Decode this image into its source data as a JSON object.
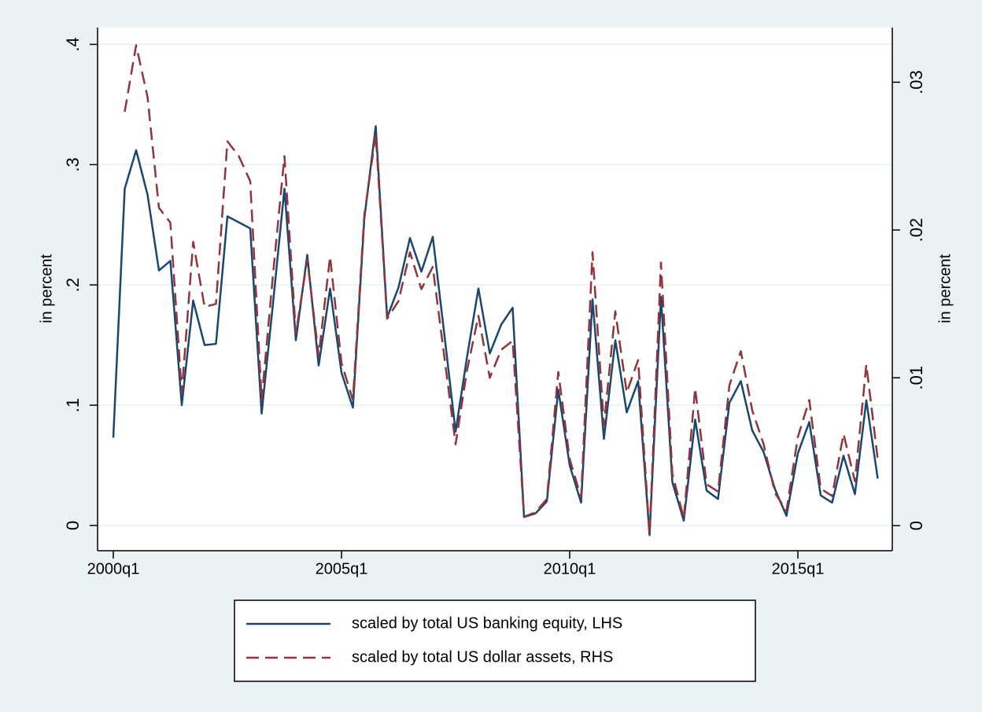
{
  "chart_data": {
    "type": "line",
    "categories": [
      "2000q1",
      null,
      null,
      null,
      null,
      null,
      null,
      null,
      null,
      null,
      null,
      null,
      null,
      null,
      null,
      null,
      null,
      null,
      null,
      null,
      "2005q1",
      null,
      null,
      null,
      null,
      null,
      null,
      null,
      null,
      null,
      null,
      null,
      null,
      null,
      null,
      null,
      null,
      null,
      null,
      null,
      "2010q1",
      null,
      null,
      null,
      null,
      null,
      null,
      null,
      null,
      null,
      null,
      null,
      null,
      null,
      null,
      null,
      null,
      null,
      null,
      null,
      "2015q1",
      null,
      null,
      null,
      null,
      null,
      null,
      null
    ],
    "series": [
      {
        "name": "scaled by total US banking equity, LHS",
        "color": "#1a476f",
        "style": "solid",
        "values": [
          0.073,
          0.28,
          0.312,
          0.275,
          0.212,
          0.22,
          0.1,
          0.187,
          0.15,
          0.151,
          0.257,
          0.252,
          0.247,
          0.093,
          0.185,
          0.28,
          0.154,
          0.225,
          0.133,
          0.197,
          0.127,
          0.098,
          0.255,
          0.332,
          0.173,
          0.198,
          0.239,
          0.211,
          0.24,
          0.16,
          0.078,
          0.14,
          0.197,
          0.143,
          0.167,
          0.181,
          0.007,
          0.01,
          0.02,
          0.113,
          0.05,
          0.019,
          0.188,
          0.072,
          0.154,
          0.094,
          0.12,
          -0.008,
          0.19,
          0.036,
          0.004,
          0.088,
          0.029,
          0.022,
          0.102,
          0.12,
          0.079,
          0.061,
          0.03,
          0.008,
          0.06,
          0.086,
          0.025,
          0.019,
          0.058,
          0.026,
          0.104,
          0.039
        ]
      },
      {
        "name": "scaled by total US dollar assets, RHS",
        "color": "#90353b",
        "style": "dashed",
        "axis": "y2",
        "values": [
          null,
          0.028,
          0.0325,
          0.029,
          0.0215,
          0.0205,
          0.009,
          0.0192,
          0.0148,
          0.015,
          0.026,
          0.025,
          0.0233,
          0.0085,
          0.017,
          0.025,
          0.013,
          0.018,
          0.0115,
          0.0182,
          0.011,
          0.0085,
          0.021,
          0.0265,
          0.014,
          0.0152,
          0.0185,
          0.016,
          0.0175,
          0.0115,
          0.0055,
          0.0105,
          0.0142,
          0.01,
          0.0119,
          0.0125,
          0.0006,
          0.0009,
          0.0018,
          0.0104,
          0.0045,
          0.0019,
          0.0185,
          0.0068,
          0.0145,
          0.009,
          0.0112,
          -0.0006,
          0.0178,
          0.0035,
          0.0005,
          0.0093,
          0.0028,
          0.0023,
          0.0095,
          0.0118,
          0.0078,
          0.0055,
          0.0022,
          0.001,
          0.006,
          0.0085,
          0.0025,
          0.002,
          0.0062,
          0.003,
          0.0109,
          0.0045
        ]
      }
    ],
    "y_label": "in percent",
    "y2_label": "in percent",
    "ylim": [
      -0.021,
      0.414
    ],
    "yticks": [
      0,
      {
        "value": 0.1,
        "label": ".1"
      },
      {
        "value": 0.2,
        "label": ".2"
      },
      {
        "value": 0.3,
        "label": ".3"
      },
      {
        "value": 0.4,
        "label": ".4"
      }
    ],
    "y2lim": [
      -0.0017,
      0.0337
    ],
    "y2ticks": [
      0,
      {
        "value": 0.01,
        "label": ".01"
      },
      {
        "value": 0.02,
        "label": ".02"
      },
      {
        "value": 0.03,
        "label": ".03"
      }
    ],
    "grid": true,
    "legend": "bottom"
  }
}
